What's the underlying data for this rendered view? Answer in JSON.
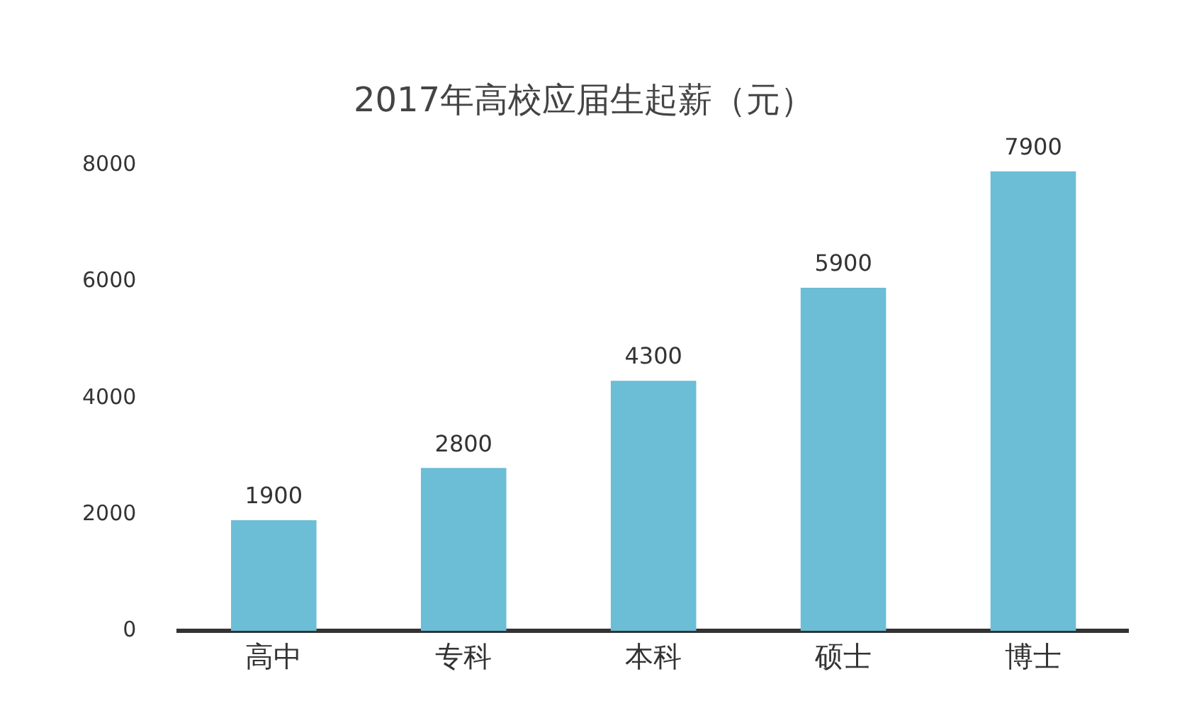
{
  "chart_data": {
    "type": "bar",
    "title": "2017年高校应届生起薪（元）",
    "categories": [
      "高中",
      "专科",
      "本科",
      "硕士",
      "博士"
    ],
    "values": [
      1900,
      2800,
      4300,
      5900,
      7900
    ],
    "color": "#6cbdd6",
    "ylim": [
      0,
      8000
    ],
    "yticks": [
      0,
      2000,
      4000,
      6000,
      8000
    ],
    "grid": false,
    "legend": false,
    "data_labels": true
  }
}
